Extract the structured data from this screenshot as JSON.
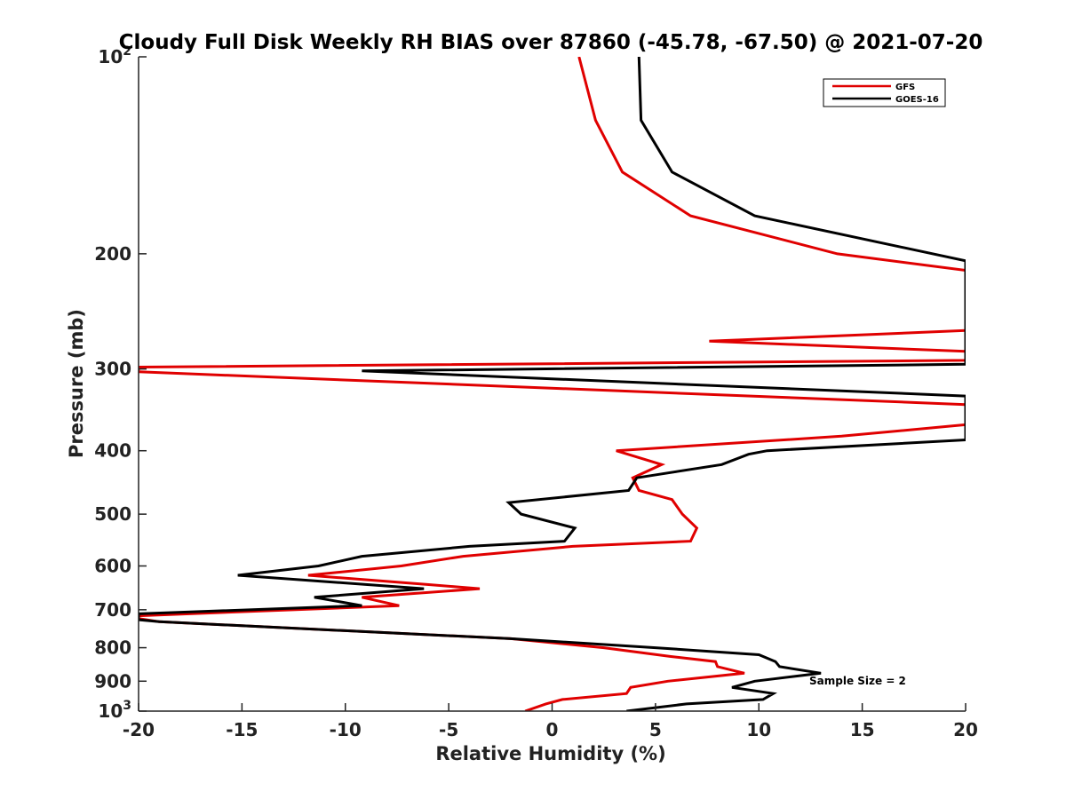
{
  "chart_data": {
    "type": "line",
    "title": "Cloudy Full Disk Weekly RH BIAS over 87860 (-45.78, -67.50) @ 2021-07-20",
    "xlabel": "Relative Humidity (%)",
    "ylabel": "Pressure (mb)",
    "xlim": [
      -20,
      20
    ],
    "ylim": [
      100,
      1000
    ],
    "yscale": "log",
    "y_reversed": true,
    "grid": false,
    "legend_position": "top-right",
    "x_ticks": [
      {
        "value": -20,
        "label": "-20"
      },
      {
        "value": -15,
        "label": "-15"
      },
      {
        "value": -10,
        "label": "-10"
      },
      {
        "value": -5,
        "label": "-5"
      },
      {
        "value": 0,
        "label": "0"
      },
      {
        "value": 5,
        "label": "5"
      },
      {
        "value": 10,
        "label": "10"
      },
      {
        "value": 15,
        "label": "15"
      },
      {
        "value": 20,
        "label": "20"
      }
    ],
    "y_ticks": [
      {
        "value": 100,
        "base": "10",
        "exp": "2"
      },
      {
        "value": 200,
        "base": "200",
        "exp": ""
      },
      {
        "value": 300,
        "base": "300",
        "exp": ""
      },
      {
        "value": 400,
        "base": "400",
        "exp": ""
      },
      {
        "value": 500,
        "base": "500",
        "exp": ""
      },
      {
        "value": 600,
        "base": "600",
        "exp": ""
      },
      {
        "value": 700,
        "base": "700",
        "exp": ""
      },
      {
        "value": 800,
        "base": "800",
        "exp": ""
      },
      {
        "value": 900,
        "base": "900",
        "exp": ""
      },
      {
        "value": 1000,
        "base": "10",
        "exp": "3"
      }
    ],
    "annotations": [
      "Sample Size = 2"
    ],
    "series": [
      {
        "name": "GFS",
        "color": "#e00000",
        "points": [
          [
            1.3,
            100
          ],
          [
            2.1,
            125
          ],
          [
            3.4,
            150
          ],
          [
            6.7,
            175
          ],
          [
            13.8,
            200
          ],
          [
            20.0,
            212
          ],
          [
            20.0,
            262
          ],
          [
            7.6,
            272
          ],
          [
            20.0,
            282
          ],
          [
            20.0,
            291
          ],
          [
            -20.0,
            298
          ],
          [
            -20.0,
            303
          ],
          [
            20.0,
            340
          ],
          [
            20.0,
            365
          ],
          [
            14.0,
            380
          ],
          [
            3.1,
            400
          ],
          [
            5.3,
            420
          ],
          [
            3.9,
            440
          ],
          [
            4.2,
            460
          ],
          [
            5.8,
            475
          ],
          [
            6.3,
            500
          ],
          [
            7.0,
            525
          ],
          [
            6.7,
            550
          ],
          [
            1.0,
            560
          ],
          [
            -4.3,
            580
          ],
          [
            -7.3,
            600
          ],
          [
            -11.8,
            620
          ],
          [
            -6.1,
            640
          ],
          [
            -3.5,
            650
          ],
          [
            -9.2,
            670
          ],
          [
            -7.4,
            690
          ],
          [
            -20.0,
            715
          ],
          [
            -20.0,
            722
          ],
          [
            -19.0,
            730
          ],
          [
            -2.0,
            775
          ],
          [
            2.5,
            800
          ],
          [
            5.7,
            825
          ],
          [
            7.9,
            840
          ],
          [
            8.0,
            855
          ],
          [
            9.3,
            875
          ],
          [
            5.6,
            900
          ],
          [
            3.8,
            920
          ],
          [
            3.6,
            940
          ],
          [
            0.5,
            960
          ],
          [
            -0.3,
            975
          ],
          [
            -1.3,
            1000
          ]
        ]
      },
      {
        "name": "GOES-16",
        "color": "#000000",
        "points": [
          [
            4.2,
            100
          ],
          [
            4.3,
            125
          ],
          [
            5.8,
            150
          ],
          [
            9.8,
            175
          ],
          [
            20.0,
            205
          ],
          [
            20.0,
            295
          ],
          [
            -9.2,
            302
          ],
          [
            20.0,
            330
          ],
          [
            20.0,
            385
          ],
          [
            10.4,
            400
          ],
          [
            9.5,
            405
          ],
          [
            8.2,
            420
          ],
          [
            4.1,
            440
          ],
          [
            3.7,
            460
          ],
          [
            -2.1,
            480
          ],
          [
            -1.5,
            500
          ],
          [
            1.1,
            525
          ],
          [
            0.6,
            550
          ],
          [
            -4.0,
            560
          ],
          [
            -9.2,
            580
          ],
          [
            -11.3,
            600
          ],
          [
            -15.2,
            620
          ],
          [
            -6.2,
            650
          ],
          [
            -11.5,
            670
          ],
          [
            -9.2,
            690
          ],
          [
            -20.0,
            710
          ],
          [
            -20.0,
            725
          ],
          [
            -19.0,
            730
          ],
          [
            -2.0,
            775
          ],
          [
            5.0,
            800
          ],
          [
            10.0,
            820
          ],
          [
            10.8,
            840
          ],
          [
            11.0,
            855
          ],
          [
            13.0,
            875
          ],
          [
            9.8,
            900
          ],
          [
            8.7,
            920
          ],
          [
            10.7,
            940
          ],
          [
            10.2,
            960
          ],
          [
            6.5,
            975
          ],
          [
            3.6,
            1000
          ]
        ]
      }
    ]
  }
}
